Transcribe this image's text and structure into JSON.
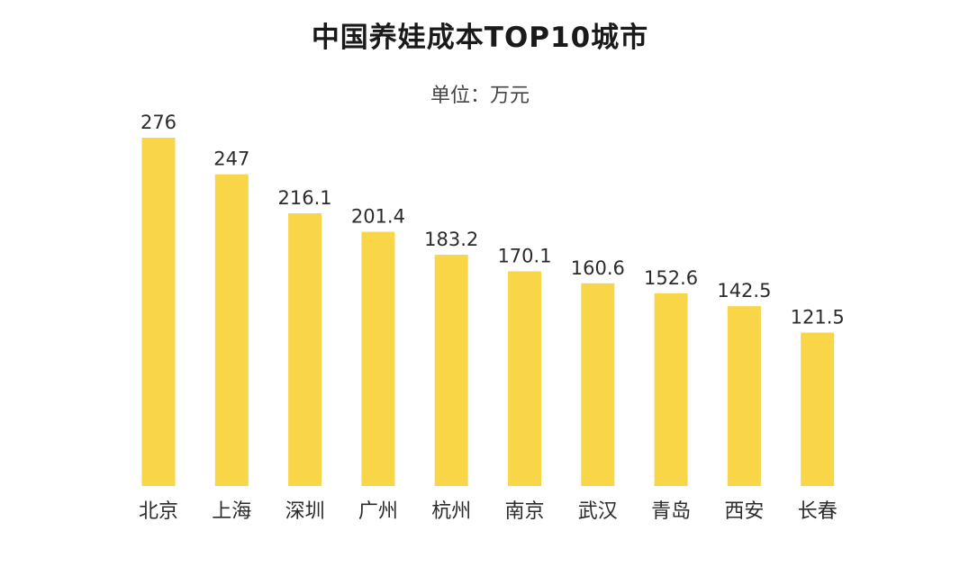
{
  "chart_data": {
    "type": "bar",
    "title": "中国养娃成本TOP10城市",
    "subtitle": "单位：万元",
    "categories": [
      "北京",
      "上海",
      "深圳",
      "广州",
      "杭州",
      "南京",
      "武汉",
      "青岛",
      "西安",
      "长春"
    ],
    "values": [
      276,
      247,
      216.1,
      201.4,
      183.2,
      170.1,
      160.6,
      152.6,
      142.5,
      121.5
    ],
    "value_labels": [
      "276",
      "247",
      "216.1",
      "201.4",
      "183.2",
      "170.1",
      "160.6",
      "152.6",
      "142.5",
      "121.5"
    ],
    "xlabel": "",
    "ylabel": "",
    "ylim": [
      0,
      276
    ],
    "grid": false,
    "legend": "none",
    "bar_color": "#F9D548"
  }
}
